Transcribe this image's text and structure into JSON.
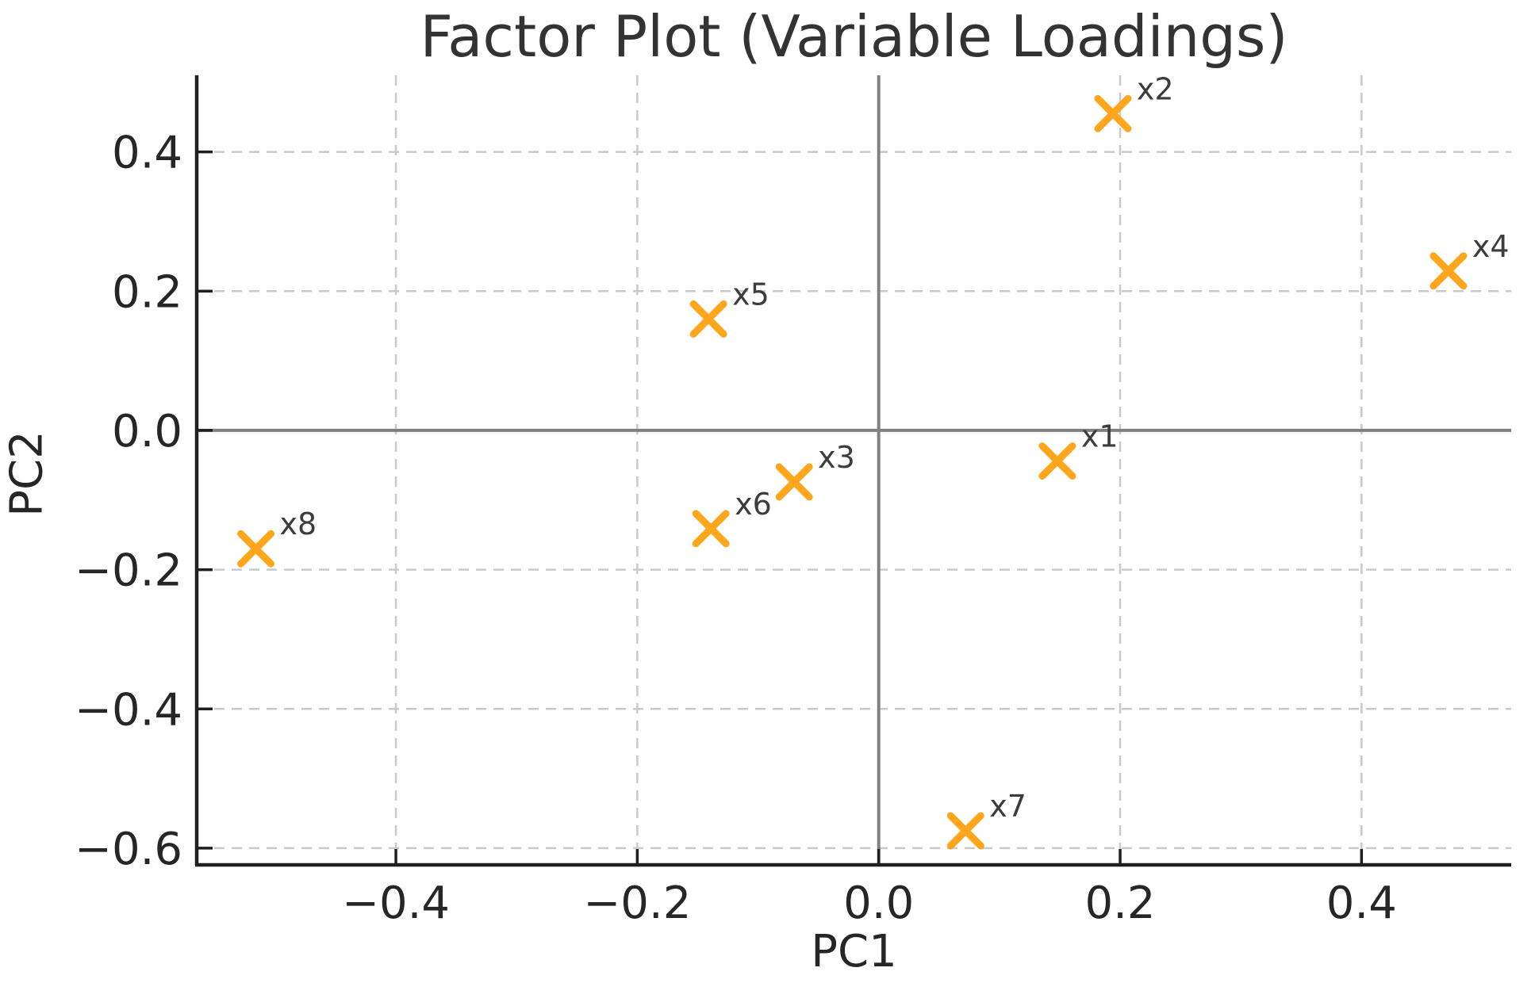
{
  "chart_data": {
    "type": "scatter",
    "title": "Factor Plot (Variable Loadings)",
    "xlabel": "PC1",
    "ylabel": "PC2",
    "xlim": [
      -0.565,
      0.524
    ],
    "ylim": [
      -0.624,
      0.51
    ],
    "x_ticks": [
      -0.4,
      -0.2,
      0.0,
      0.2,
      0.4
    ],
    "y_ticks": [
      0.4,
      0.2,
      0.0,
      -0.2,
      -0.4,
      -0.6
    ],
    "grid": "dashed",
    "legend": "none",
    "zero_lines": true,
    "marker": "x",
    "colors": {
      "marker": "#FFA61C",
      "grid": "#c9c9c9",
      "zero_line": "#808080",
      "spine": "#1f1f1f",
      "text": "#262626"
    },
    "points": [
      {
        "label": "x1",
        "x": 0.148,
        "y": -0.044
      },
      {
        "label": "x2",
        "x": 0.194,
        "y": 0.455
      },
      {
        "label": "x3",
        "x": -0.07,
        "y": -0.074
      },
      {
        "label": "x4",
        "x": 0.472,
        "y": 0.229
      },
      {
        "label": "x5",
        "x": -0.141,
        "y": 0.16
      },
      {
        "label": "x6",
        "x": -0.139,
        "y": -0.141
      },
      {
        "label": "x7",
        "x": 0.072,
        "y": -0.575
      },
      {
        "label": "x8",
        "x": -0.516,
        "y": -0.17
      }
    ]
  }
}
